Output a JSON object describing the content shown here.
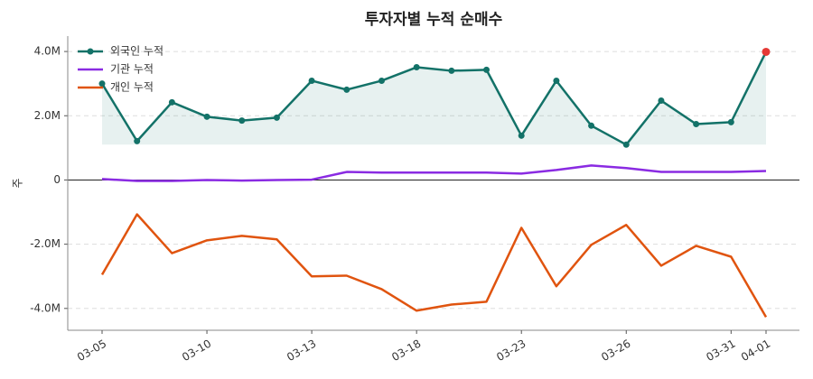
{
  "chart_data": {
    "type": "line",
    "title": "투자자별 누적 순매수",
    "y_label": "주",
    "categories": [
      "03-05",
      null,
      null,
      "03-10",
      null,
      null,
      "03-13",
      null,
      null,
      "03-18",
      null,
      null,
      "03-23",
      null,
      null,
      "03-26",
      null,
      null,
      "03-31",
      "04-01"
    ],
    "series": [
      {
        "name": "외국인 누적",
        "color": "#137268",
        "marker": true,
        "fill": true,
        "highlight_last_color": "#e53935",
        "values": [
          3000000,
          1210000,
          2420000,
          1970000,
          1850000,
          1940000,
          3090000,
          2810000,
          3090000,
          3510000,
          3400000,
          3430000,
          1380000,
          3090000,
          1690000,
          1100000,
          2470000,
          1740000,
          1800000,
          3990000
        ]
      },
      {
        "name": "기관 누적",
        "color": "#8a2be2",
        "marker": false,
        "values": [
          30000,
          -30000,
          -30000,
          0,
          -20000,
          0,
          10000,
          250000,
          230000,
          230000,
          230000,
          230000,
          200000,
          310000,
          450000,
          370000,
          250000,
          250000,
          250000,
          280000
        ]
      },
      {
        "name": "개인 누적",
        "color": "#e0540f",
        "marker": false,
        "values": [
          -2950000,
          -1070000,
          -2280000,
          -1880000,
          -1740000,
          -1850000,
          -3000000,
          -2980000,
          -3400000,
          -4070000,
          -3880000,
          -3790000,
          -1490000,
          -3310000,
          -2020000,
          -1400000,
          -2670000,
          -2050000,
          -2390000,
          -4270000
        ]
      }
    ],
    "ylim": [
      -4680000,
      4480000
    ],
    "yticks": [
      {
        "value": -4000000,
        "label": "-4.0M"
      },
      {
        "value": -2000000,
        "label": "-2.0M"
      },
      0,
      {
        "value": 2000000,
        "label": "2.0M"
      },
      {
        "value": 4000000,
        "label": "4.0M"
      }
    ],
    "grid": true,
    "zero_line": true,
    "legend": "upper-left"
  }
}
